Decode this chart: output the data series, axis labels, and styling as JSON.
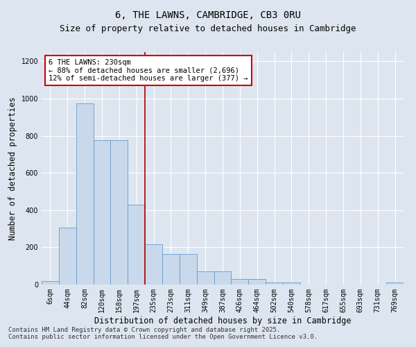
{
  "title": "6, THE LAWNS, CAMBRIDGE, CB3 0RU",
  "subtitle": "Size of property relative to detached houses in Cambridge",
  "xlabel": "Distribution of detached houses by size in Cambridge",
  "ylabel": "Number of detached properties",
  "categories": [
    "6sqm",
    "44sqm",
    "82sqm",
    "120sqm",
    "158sqm",
    "197sqm",
    "235sqm",
    "273sqm",
    "311sqm",
    "349sqm",
    "387sqm",
    "426sqm",
    "464sqm",
    "502sqm",
    "540sqm",
    "578sqm",
    "617sqm",
    "655sqm",
    "693sqm",
    "731sqm",
    "769sqm"
  ],
  "values": [
    20,
    305,
    975,
    775,
    775,
    430,
    215,
    165,
    165,
    70,
    70,
    30,
    30,
    10,
    10,
    0,
    0,
    0,
    0,
    0,
    10
  ],
  "bar_color": "#c9d9eb",
  "bar_edge_color": "#6699cc",
  "annotation_text": "6 THE LAWNS: 230sqm\n← 88% of detached houses are smaller (2,696)\n12% of semi-detached houses are larger (377) →",
  "annotation_box_color": "#ffffff",
  "annotation_box_edge": "#cc0000",
  "vline_x_index": 6,
  "vline_color": "#aa0000",
  "footer_line1": "Contains HM Land Registry data © Crown copyright and database right 2025.",
  "footer_line2": "Contains public sector information licensed under the Open Government Licence v3.0.",
  "ylim": [
    0,
    1250
  ],
  "yticks": [
    0,
    200,
    400,
    600,
    800,
    1000,
    1200
  ],
  "background_color": "#dde6f0",
  "plot_background": "#dde6f0",
  "grid_color": "#ffffff",
  "title_fontsize": 10,
  "subtitle_fontsize": 9,
  "axis_label_fontsize": 8.5,
  "tick_fontsize": 7,
  "annotation_fontsize": 7.5,
  "footer_fontsize": 6.5
}
